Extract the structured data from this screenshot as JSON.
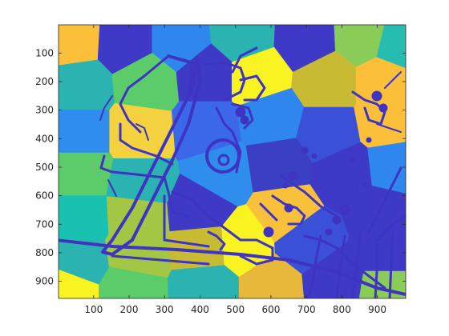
{
  "chart_data": {
    "type": "heatmap",
    "title": "",
    "xlabel": "",
    "ylabel": "",
    "xlim": [
      1,
      980
    ],
    "ylim": [
      1,
      960
    ],
    "y_reversed": true,
    "grid": false,
    "colormap": "parula",
    "x_ticks": [
      100,
      200,
      300,
      400,
      500,
      600,
      700,
      800,
      900
    ],
    "y_ticks": [
      100,
      200,
      300,
      400,
      500,
      600,
      700,
      800,
      900
    ],
    "x_tick_labels": [
      "100",
      "200",
      "300",
      "400",
      "500",
      "600",
      "700",
      "800",
      "900"
    ],
    "y_tick_labels": [
      "100",
      "200",
      "300",
      "400",
      "500",
      "600",
      "700",
      "800",
      "900"
    ],
    "overlay_color": "#3f33c1",
    "regions": [
      {
        "x": 40,
        "y": 50,
        "color": "#fbbf3a"
      },
      {
        "x": 190,
        "y": 60,
        "color": "#3e3ac7"
      },
      {
        "x": 340,
        "y": 60,
        "color": "#2e86ee"
      },
      {
        "x": 520,
        "y": 40,
        "color": "#2ab3b0"
      },
      {
        "x": 700,
        "y": 50,
        "color": "#3e3ac7"
      },
      {
        "x": 860,
        "y": 40,
        "color": "#8acc58"
      },
      {
        "x": 960,
        "y": 70,
        "color": "#27bcb1"
      },
      {
        "x": 60,
        "y": 220,
        "color": "#2ab3b0"
      },
      {
        "x": 250,
        "y": 200,
        "color": "#5ccc6a"
      },
      {
        "x": 420,
        "y": 180,
        "color": "#3e3ac7"
      },
      {
        "x": 560,
        "y": 180,
        "color": "#f9f321"
      },
      {
        "x": 760,
        "y": 200,
        "color": "#c9ba33"
      },
      {
        "x": 920,
        "y": 200,
        "color": "#fbbf3a"
      },
      {
        "x": 60,
        "y": 380,
        "color": "#2f8ded"
      },
      {
        "x": 230,
        "y": 380,
        "color": "#f4d23f"
      },
      {
        "x": 420,
        "y": 360,
        "color": "#3a68e8"
      },
      {
        "x": 600,
        "y": 330,
        "color": "#2e86ee"
      },
      {
        "x": 760,
        "y": 380,
        "color": "#3a50d6"
      },
      {
        "x": 930,
        "y": 340,
        "color": "#fbbf3a"
      },
      {
        "x": 60,
        "y": 520,
        "color": "#5ccc6a"
      },
      {
        "x": 230,
        "y": 560,
        "color": "#2ab3b0"
      },
      {
        "x": 460,
        "y": 520,
        "color": "#2f8ded"
      },
      {
        "x": 620,
        "y": 490,
        "color": "#3a3fc4"
      },
      {
        "x": 810,
        "y": 520,
        "color": "#3e3ac7"
      },
      {
        "x": 950,
        "y": 500,
        "color": "#2e86ee"
      },
      {
        "x": 60,
        "y": 680,
        "color": "#19c1b0"
      },
      {
        "x": 220,
        "y": 670,
        "color": "#a3c745"
      },
      {
        "x": 400,
        "y": 650,
        "color": "#3e3ac7"
      },
      {
        "x": 640,
        "y": 660,
        "color": "#f8c03b"
      },
      {
        "x": 920,
        "y": 660,
        "color": "#3e3ac7"
      },
      {
        "x": 60,
        "y": 830,
        "color": "#2ab3b0"
      },
      {
        "x": 220,
        "y": 800,
        "color": "#a3c745"
      },
      {
        "x": 410,
        "y": 780,
        "color": "#c9ba33"
      },
      {
        "x": 520,
        "y": 770,
        "color": "#f9f321"
      },
      {
        "x": 700,
        "y": 760,
        "color": "#3a50d6"
      },
      {
        "x": 930,
        "y": 800,
        "color": "#3e3ac7"
      },
      {
        "x": 30,
        "y": 930,
        "color": "#f9f321"
      },
      {
        "x": 200,
        "y": 930,
        "color": "#5ccc6a"
      },
      {
        "x": 420,
        "y": 920,
        "color": "#2ab3b0"
      },
      {
        "x": 600,
        "y": 920,
        "color": "#e8b83b"
      },
      {
        "x": 780,
        "y": 900,
        "color": "#3e3ac7"
      },
      {
        "x": 930,
        "y": 930,
        "color": "#8acc58"
      }
    ]
  }
}
